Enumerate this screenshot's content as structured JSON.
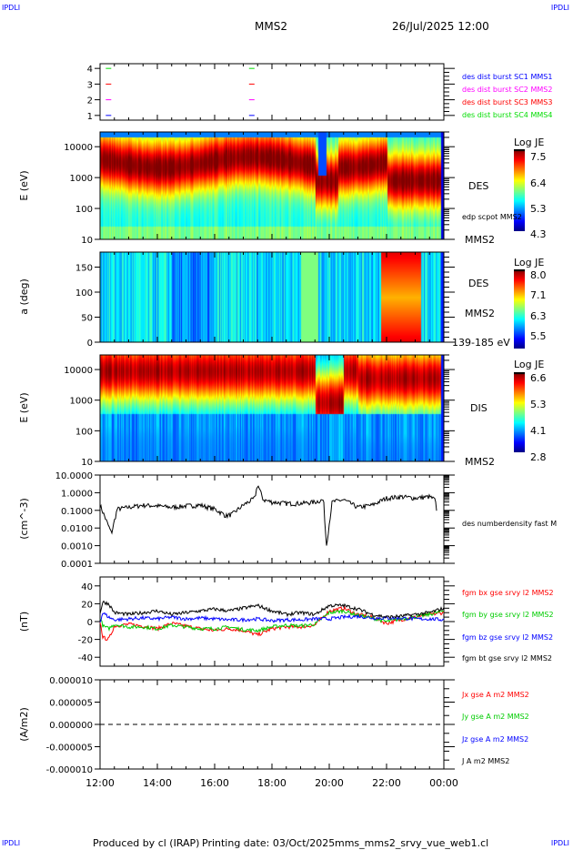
{
  "header": {
    "corner": "IPDLI",
    "title": "MMS2",
    "date": "26/Jul/2025 12:00"
  },
  "footer": {
    "produced": "Produced by cl (IRAP)",
    "printing": "Printing date: 03/Oct/2025",
    "file": "mms_mms2_srvy_vue_web1.cl"
  },
  "chart_data": [
    {
      "type": "line",
      "panel": "burst",
      "yticks": [
        "1",
        "2",
        "3",
        "4"
      ],
      "ylim": [
        0.7,
        4.3
      ],
      "legend": [
        {
          "name": "des dist burst SC1 MMS1",
          "color": "#0000ff"
        },
        {
          "name": "des dist burst SC2 MMS2",
          "color": "#ff00ff"
        },
        {
          "name": "des dist burst SC3 MMS3",
          "color": "#ff0000"
        },
        {
          "name": "des dist burst SC4 MMS4",
          "color": "#00dd00"
        }
      ]
    },
    {
      "type": "heatmap",
      "panel": "des-energy",
      "ylabel": "E (eV)",
      "yscale": "log",
      "ylim": [
        10,
        30000
      ],
      "yticks": [
        "10",
        "100",
        "1000",
        "10000"
      ],
      "label": "DES",
      "sublabel": "MMS2",
      "overlay": "edp scpot MMS2",
      "colorbar": {
        "title": "Log JE",
        "ticks": [
          "7.5",
          "6.4",
          "5.3",
          "4.3"
        ],
        "range": [
          4.3,
          7.6
        ]
      }
    },
    {
      "type": "heatmap",
      "panel": "des-pitch",
      "ylabel": "a (deg)",
      "ylim": [
        0,
        180
      ],
      "yticks": [
        "0",
        "50",
        "100",
        "150"
      ],
      "label": "DES",
      "sublabel": "MMS2",
      "energy_range": "139-185 eV",
      "colorbar": {
        "title": "Log JE",
        "ticks": [
          "8.0",
          "7.1",
          "6.3",
          "5.5"
        ],
        "range": [
          5.5,
          8.1
        ]
      }
    },
    {
      "type": "heatmap",
      "panel": "dis-energy",
      "ylabel": "E (eV)",
      "yscale": "log",
      "ylim": [
        10,
        30000
      ],
      "yticks": [
        "10",
        "100",
        "1000",
        "10000"
      ],
      "label": "DIS",
      "sublabel": "MMS2",
      "colorbar": {
        "title": "Log JE",
        "ticks": [
          "6.6",
          "5.3",
          "4.1",
          "2.8"
        ],
        "range": [
          2.8,
          6.7
        ]
      }
    },
    {
      "type": "line",
      "panel": "density",
      "ylabel": "(cm^-3)",
      "yscale": "log",
      "ylim": [
        0.0001,
        10
      ],
      "yticks": [
        "10.0000",
        "1.0000",
        "0.1000",
        "0.0100",
        "0.0010",
        "0.0001"
      ],
      "series": [
        {
          "name": "des numberdensity fast M",
          "color": "#000000",
          "x": [
            12,
            12.25,
            12.4,
            12.6,
            13,
            13.5,
            14,
            14.5,
            15,
            15.5,
            16,
            16.4,
            16.6,
            17,
            17.4,
            17.5,
            17.7,
            18,
            18.5,
            19,
            19.5,
            19.8,
            19.9,
            20.1,
            20.5,
            21,
            21.5,
            22,
            22.5,
            23,
            23.5,
            23.7,
            23.85,
            23.95
          ],
          "y": [
            0.2,
            0.02,
            0.005,
            0.12,
            0.15,
            0.2,
            0.18,
            0.15,
            0.18,
            0.2,
            0.12,
            0.05,
            0.06,
            0.2,
            0.5,
            3,
            0.4,
            0.3,
            0.25,
            0.25,
            0.3,
            0.4,
            0.001,
            0.3,
            0.4,
            0.15,
            0.2,
            0.5,
            0.6,
            0.5,
            0.6,
            0.4,
            0.002,
            0.004
          ]
        }
      ]
    },
    {
      "type": "line",
      "panel": "magnetic-field",
      "ylabel": "(nT)",
      "ylim": [
        -50,
        50
      ],
      "yticks": [
        "40",
        "20",
        "0",
        "-20",
        "-40"
      ],
      "x": [
        12,
        12.1,
        12.3,
        12.5,
        13,
        13.5,
        14,
        14.5,
        15,
        15.5,
        16,
        16.5,
        17,
        17.5,
        18,
        18.5,
        19,
        19.5,
        20,
        20.5,
        21,
        21.5,
        22,
        22.5,
        23,
        23.5,
        24
      ],
      "series": [
        {
          "name": "fgm bx gse srvy l2 MMS2",
          "color": "#ff0000",
          "y": [
            0,
            -18,
            -20,
            -5,
            -3,
            -5,
            -8,
            -2,
            -5,
            -8,
            -10,
            -8,
            -10,
            -15,
            -8,
            -6,
            -6,
            -4,
            12,
            15,
            8,
            5,
            -2,
            2,
            5,
            8,
            10
          ]
        },
        {
          "name": "fgm by gse srvy l2 MMS2",
          "color": "#00cc00",
          "y": [
            5,
            -5,
            -8,
            -3,
            -6,
            -6,
            -8,
            -4,
            -6,
            -8,
            -8,
            -6,
            -9,
            -10,
            -6,
            -4,
            -5,
            -3,
            10,
            12,
            7,
            4,
            0,
            3,
            5,
            8,
            12
          ]
        },
        {
          "name": "fgm bz gse srvy l2 MMS2",
          "color": "#0000ff",
          "y": [
            0,
            10,
            5,
            2,
            3,
            4,
            3,
            5,
            3,
            4,
            3,
            2,
            2,
            3,
            1,
            2,
            2,
            3,
            3,
            5,
            6,
            4,
            4,
            4,
            3,
            3,
            2
          ]
        },
        {
          "name": "fgm bt gse srvy l2 MMS2",
          "color": "#000000",
          "y": [
            10,
            22,
            20,
            10,
            8,
            10,
            12,
            8,
            10,
            12,
            14,
            12,
            15,
            18,
            12,
            8,
            10,
            8,
            18,
            18,
            14,
            8,
            5,
            6,
            8,
            10,
            15
          ]
        }
      ]
    },
    {
      "type": "line",
      "panel": "current",
      "ylabel": "(A/m2)",
      "ylim": [
        -1e-05,
        1e-05
      ],
      "yticks": [
        "0.000010",
        "0.000005",
        "0.000000",
        "-0.000005",
        "-0.000010"
      ],
      "series": [
        {
          "name": "Jx gse A m2 MMS2",
          "color": "#ff0000"
        },
        {
          "name": "Jy gse A m2 MMS2",
          "color": "#00cc00"
        },
        {
          "name": "Jz gse A m2 MMS2",
          "color": "#0000ff"
        },
        {
          "name": "J A m2 MMS2",
          "color": "#000000"
        }
      ]
    }
  ],
  "xaxis": {
    "ticks": [
      "12:00",
      "14:00",
      "16:00",
      "18:00",
      "20:00",
      "22:00",
      "00:00"
    ]
  }
}
